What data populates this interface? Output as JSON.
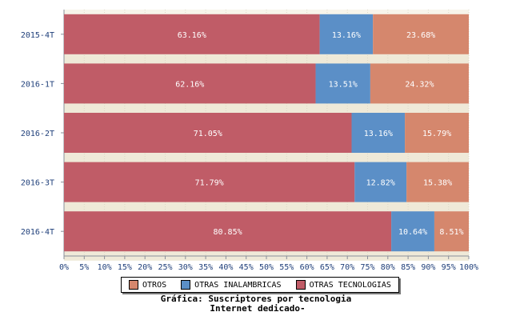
{
  "chart_data": {
    "type": "bar",
    "orientation": "horizontal",
    "stacked": true,
    "categories": [
      "2015-4T",
      "2016-1T",
      "2016-2T",
      "2016-3T",
      "2016-4T"
    ],
    "series": [
      {
        "name": "OTRAS TECNOLOGIAS",
        "color": "#c05c67",
        "values": [
          63.16,
          62.16,
          71.05,
          71.79,
          80.85
        ],
        "labels": [
          "63.16%",
          "62.16%",
          "71.05%",
          "71.79%",
          "80.85%"
        ]
      },
      {
        "name": "OTRAS INALAMBRICAS",
        "color": "#5b8fc7",
        "values": [
          13.16,
          13.51,
          13.16,
          12.82,
          10.64
        ],
        "labels": [
          "13.16%",
          "13.51%",
          "13.16%",
          "12.82%",
          "10.64%"
        ]
      },
      {
        "name": "OTROS",
        "color": "#d5876d",
        "values": [
          23.68,
          24.32,
          15.79,
          15.38,
          8.51
        ],
        "labels": [
          "23.68%",
          "24.32%",
          "15.79%",
          "15.38%",
          "8.51%"
        ]
      }
    ],
    "xlim": [
      0,
      100
    ],
    "x_ticks": [
      "0%",
      "5%",
      "10%",
      "15%",
      "20%",
      "25%",
      "30%",
      "35%",
      "40%",
      "45%",
      "50%",
      "55%",
      "60%",
      "65%",
      "70%",
      "75%",
      "80%",
      "85%",
      "90%",
      "95%",
      "100%"
    ],
    "legend": {
      "placement": "bottom",
      "items": [
        {
          "label": "OTROS",
          "color": "#d5876d"
        },
        {
          "label": "OTRAS INALAMBRICAS",
          "color": "#5b8fc7"
        },
        {
          "label": "OTRAS TECNOLOGIAS",
          "color": "#c05c67"
        }
      ]
    },
    "title_line1": "Gráfica: Suscriptores por tecnologia",
    "title_line2": "Internet dedicado-",
    "grid": true
  }
}
